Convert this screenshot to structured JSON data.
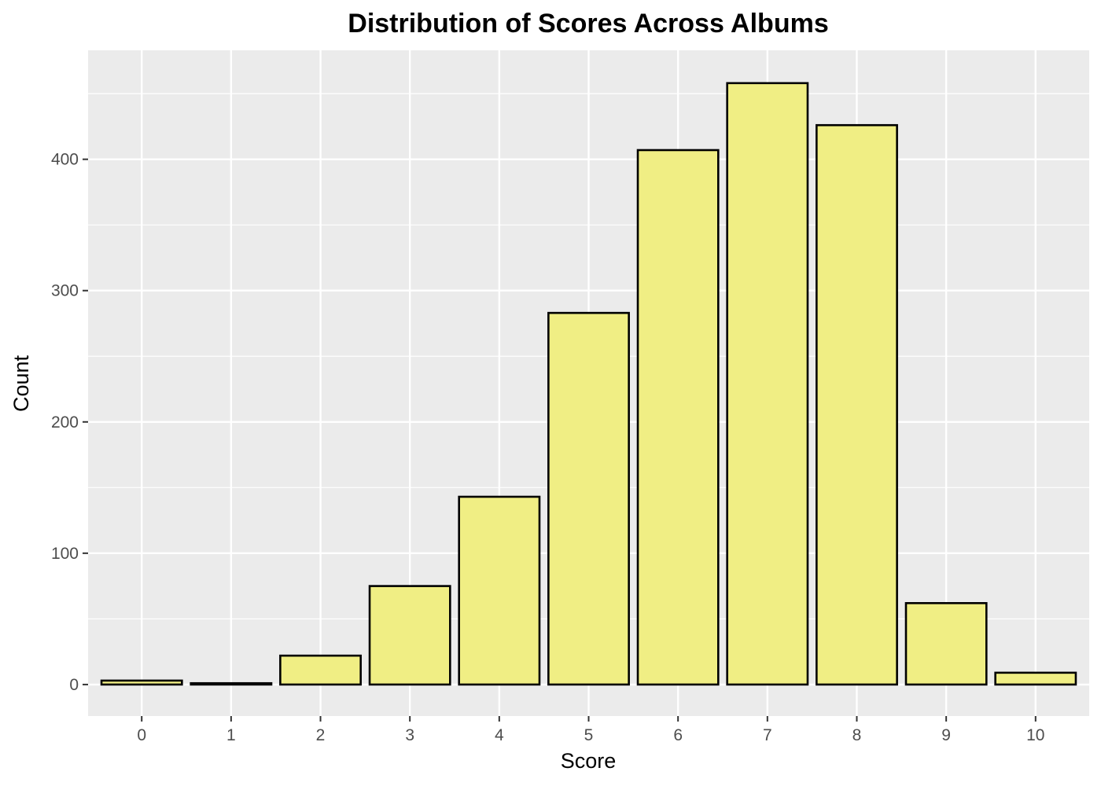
{
  "chart_data": {
    "type": "bar",
    "title": "Distribution of Scores Across Albums",
    "xlabel": "Score",
    "ylabel": "Count",
    "categories": [
      "0",
      "1",
      "2",
      "3",
      "4",
      "5",
      "6",
      "7",
      "8",
      "9",
      "10"
    ],
    "values": [
      3,
      1,
      22,
      75,
      143,
      283,
      407,
      458,
      426,
      62,
      9
    ],
    "yticks": [
      0,
      100,
      200,
      300,
      400
    ],
    "ylim": [
      -24,
      483
    ],
    "grid": true,
    "legend": "none",
    "colors": {
      "bar_fill": "#f0ee84",
      "bar_outline": "#000000",
      "panel_background": "#ebebeb",
      "grid": "#ffffff",
      "tick_text": "#4d4d4d"
    }
  }
}
